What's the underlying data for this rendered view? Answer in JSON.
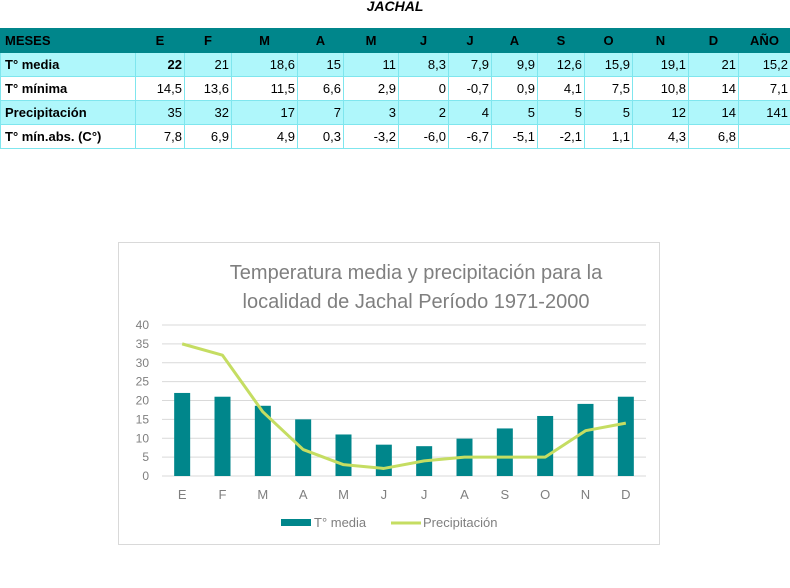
{
  "title": "JACHAL",
  "table": {
    "headers": [
      "MESES",
      "E",
      "F",
      "M",
      "A",
      "M",
      "J",
      "J",
      "A",
      "S",
      "O",
      "N",
      "D",
      "AÑO"
    ],
    "rows": [
      {
        "label": "T° media",
        "values": [
          "22",
          "21",
          "18,6",
          "15",
          "11",
          "8,3",
          "7,9",
          "9,9",
          "12,6",
          "15,9",
          "19,1",
          "21",
          "15,2"
        ]
      },
      {
        "label": "T° mínima",
        "values": [
          "14,5",
          "13,6",
          "11,5",
          "6,6",
          "2,9",
          "0",
          "-0,7",
          "0,9",
          "4,1",
          "7,5",
          "10,8",
          "14",
          "7,1"
        ]
      },
      {
        "label": "Precipitación",
        "values": [
          "35",
          "32",
          "17",
          "7",
          "3",
          "2",
          "4",
          "5",
          "5",
          "5",
          "12",
          "14",
          "141"
        ]
      },
      {
        "label": "T° mín.abs. (C°)",
        "values": [
          "7,8",
          "6,9",
          "4,9",
          "0,3",
          "-3,2",
          "-6,0",
          "-6,7",
          "-5,1",
          "-2,1",
          "1,1",
          "4,3",
          "6,8",
          ""
        ]
      }
    ]
  },
  "chart_data": {
    "type": "bar",
    "title": "Temperatura media y precipitación para la localidad de Jachal Período 1971-2000",
    "title_lines": [
      "Temperatura media y precipitación para la",
      "localidad de Jachal Período 1971-2000"
    ],
    "categories": [
      "E",
      "F",
      "M",
      "A",
      "M",
      "J",
      "J",
      "A",
      "S",
      "O",
      "N",
      "D"
    ],
    "series": [
      {
        "name": "T° media",
        "type": "bar",
        "color": "#00868b",
        "values": [
          22,
          21,
          18.6,
          15,
          11,
          8.3,
          7.9,
          9.9,
          12.6,
          15.9,
          19.1,
          21
        ]
      },
      {
        "name": "Precipitación",
        "type": "line",
        "color": "#c5dd62",
        "values": [
          35,
          32,
          17,
          7,
          3,
          2,
          4,
          5,
          5,
          5,
          12,
          14
        ]
      }
    ],
    "ylim": [
      0,
      40
    ],
    "yticks": [
      0,
      5,
      10,
      15,
      20,
      25,
      30,
      35,
      40
    ],
    "grid": true,
    "legend": "bottom"
  }
}
